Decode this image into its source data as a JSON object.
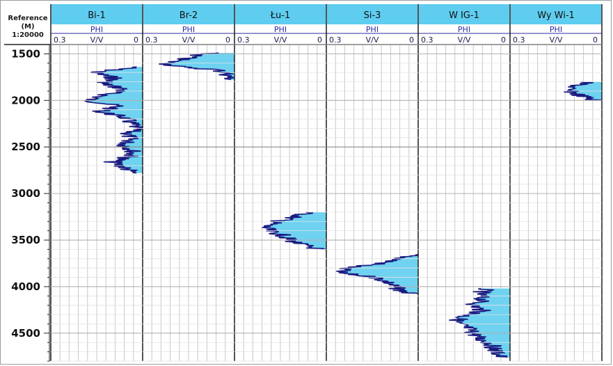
{
  "depth_header": {
    "title": "Reference",
    "unit": "(M)",
    "scale": "1:20000"
  },
  "colors": {
    "header_band": "#5fcdf0",
    "subheader_text": "#2a2aa0",
    "curve_line": "#1a1a80",
    "curve_fill": "#6fd2f0",
    "grid_line": "#c8c8c8",
    "major_grid": "#8a8a8a",
    "track_border": "#1a1a1a"
  },
  "chart_data": {
    "type": "area",
    "title": "",
    "ylabel": "Reference (M)",
    "y_axis": {
      "min": 1400,
      "max": 4800,
      "ticks": [
        1500,
        2000,
        2500,
        3000,
        3500,
        4000,
        4500
      ],
      "reversed": true
    },
    "curve": {
      "name": "PHI",
      "unit": "V/V",
      "scale_left": "0.3",
      "scale_right": "0",
      "x_range": [
        0.3,
        0
      ]
    },
    "tracks": [
      {
        "name": "Bi-1",
        "top_depth": 1640,
        "base_depth": 2780,
        "profile": [
          [
            1640,
            0.02
          ],
          [
            1700,
            0.16
          ],
          [
            1760,
            0.09
          ],
          [
            1820,
            0.13
          ],
          [
            1880,
            0.06
          ],
          [
            1940,
            0.12
          ],
          [
            2000,
            0.18
          ],
          [
            2060,
            0.08
          ],
          [
            2120,
            0.14
          ],
          [
            2180,
            0.06
          ],
          [
            2240,
            0.04
          ],
          [
            2300,
            0.02
          ],
          [
            2360,
            0.05
          ],
          [
            2420,
            0.04
          ],
          [
            2480,
            0.06
          ],
          [
            2540,
            0.03
          ],
          [
            2600,
            0.04
          ],
          [
            2660,
            0.1
          ],
          [
            2720,
            0.06
          ],
          [
            2780,
            0.03
          ]
        ]
      },
      {
        "name": "Br-2",
        "top_depth": 1490,
        "base_depth": 1780,
        "profile": [
          [
            1490,
            0.08
          ],
          [
            1520,
            0.13
          ],
          [
            1550,
            0.16
          ],
          [
            1580,
            0.2
          ],
          [
            1610,
            0.22
          ],
          [
            1640,
            0.18
          ],
          [
            1670,
            0.06
          ],
          [
            1700,
            0.03
          ],
          [
            1740,
            0.02
          ],
          [
            1780,
            0.01
          ]
        ]
      },
      {
        "name": "Łu-1",
        "top_depth": 3200,
        "base_depth": 3610,
        "profile": [
          [
            3200,
            0.06
          ],
          [
            3250,
            0.1
          ],
          [
            3300,
            0.16
          ],
          [
            3350,
            0.2
          ],
          [
            3400,
            0.19
          ],
          [
            3450,
            0.14
          ],
          [
            3500,
            0.12
          ],
          [
            3550,
            0.08
          ],
          [
            3610,
            0.01
          ]
        ]
      },
      {
        "name": "Si-3",
        "top_depth": 3650,
        "base_depth": 4080,
        "profile": [
          [
            3650,
            0.01
          ],
          [
            3700,
            0.06
          ],
          [
            3750,
            0.12
          ],
          [
            3800,
            0.24
          ],
          [
            3850,
            0.26
          ],
          [
            3900,
            0.14
          ],
          [
            3950,
            0.1
          ],
          [
            4000,
            0.08
          ],
          [
            4050,
            0.05
          ],
          [
            4080,
            0.02
          ]
        ]
      },
      {
        "name": "W IG-1",
        "top_depth": 4020,
        "base_depth": 4760,
        "profile": [
          [
            4020,
            0.08
          ],
          [
            4080,
            0.1
          ],
          [
            4140,
            0.09
          ],
          [
            4200,
            0.12
          ],
          [
            4260,
            0.09
          ],
          [
            4320,
            0.15
          ],
          [
            4380,
            0.18
          ],
          [
            4440,
            0.14
          ],
          [
            4500,
            0.12
          ],
          [
            4560,
            0.1
          ],
          [
            4620,
            0.06
          ],
          [
            4680,
            0.05
          ],
          [
            4760,
            0.03
          ]
        ]
      },
      {
        "name": "Wy Wi-1",
        "top_depth": 1800,
        "base_depth": 2000,
        "profile": [
          [
            1800,
            0.05
          ],
          [
            1840,
            0.08
          ],
          [
            1880,
            0.12
          ],
          [
            1920,
            0.09
          ],
          [
            1960,
            0.06
          ],
          [
            2000,
            0.02
          ]
        ]
      }
    ]
  }
}
